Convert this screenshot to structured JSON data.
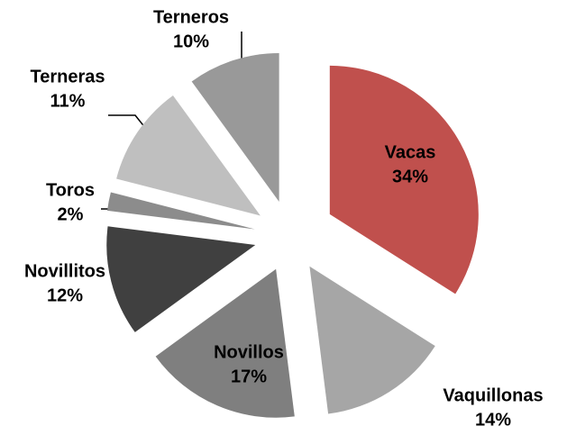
{
  "chart_data": {
    "type": "pie",
    "categories": [
      "Vacas",
      "Vaquillonas",
      "Novillos",
      "Novillitos",
      "Toros",
      "Terneras",
      "Terneros"
    ],
    "values": [
      34,
      14,
      17,
      12,
      2,
      11,
      10
    ],
    "value_labels": [
      "34%",
      "14%",
      "17%",
      "12%",
      "2%",
      "11%",
      "10%"
    ],
    "colors": [
      "#c0504d",
      "#a6a6a6",
      "#7f7f7f",
      "#404040",
      "#8c8c8c",
      "#bfbfbf",
      "#999999"
    ]
  }
}
